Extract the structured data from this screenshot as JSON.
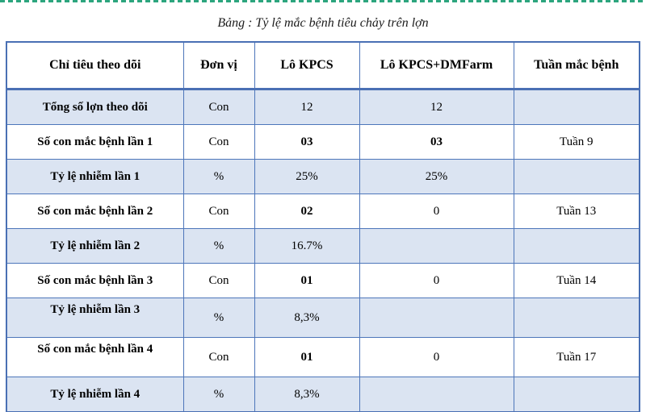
{
  "caption": "Bảng : Tỷ lệ mắc bệnh tiêu chảy trên lợn",
  "colors": {
    "top_dashed_line": "#2ca57e",
    "table_border": "#4a70b4",
    "shaded_row_fill": "#dbe4f2"
  },
  "table": {
    "columns": [
      "Chỉ tiêu theo dõi",
      "Đơn vị",
      "Lô KPCS",
      "Lô KPCS+DMFarm",
      "Tuần mắc bệnh"
    ],
    "rows": [
      {
        "label": "Tổng số lợn theo dõi",
        "unit": "Con",
        "kpcs": "12",
        "dmfarm": "12",
        "week": "",
        "shaded": true,
        "kpcs_bold": false,
        "dmfarm_bold": false,
        "label_top": false
      },
      {
        "label": "Số con mắc bệnh lần 1",
        "unit": "Con",
        "kpcs": "03",
        "dmfarm": "03",
        "week": "Tuần 9",
        "shaded": false,
        "kpcs_bold": true,
        "dmfarm_bold": true,
        "label_top": false
      },
      {
        "label": "Tỷ lệ nhiễm lần 1",
        "unit": "%",
        "kpcs": "25%",
        "dmfarm": "25%",
        "week": "",
        "shaded": true,
        "kpcs_bold": false,
        "dmfarm_bold": false,
        "label_top": false
      },
      {
        "label": "Số con mắc bệnh lần 2",
        "unit": "Con",
        "kpcs": "02",
        "dmfarm": "0",
        "week": "Tuần 13",
        "shaded": false,
        "kpcs_bold": true,
        "dmfarm_bold": false,
        "label_top": false
      },
      {
        "label": "Tỷ lệ nhiễm lần 2",
        "unit": "%",
        "kpcs": "16.7%",
        "dmfarm": "",
        "week": "",
        "shaded": true,
        "kpcs_bold": false,
        "dmfarm_bold": false,
        "label_top": false
      },
      {
        "label": "Số con mắc bệnh lần 3",
        "unit": "Con",
        "kpcs": "01",
        "dmfarm": "0",
        "week": "Tuần 14",
        "shaded": false,
        "kpcs_bold": true,
        "dmfarm_bold": false,
        "label_top": false
      },
      {
        "label": "Tỷ lệ nhiễm lần 3",
        "unit": "%",
        "kpcs": "8,3%",
        "dmfarm": "",
        "week": "",
        "shaded": true,
        "kpcs_bold": false,
        "dmfarm_bold": false,
        "label_top": true
      },
      {
        "label": "Số con mắc bệnh lần 4",
        "unit": "Con",
        "kpcs": "01",
        "dmfarm": "0",
        "week": "Tuần 17",
        "shaded": false,
        "kpcs_bold": true,
        "dmfarm_bold": false,
        "label_top": true
      },
      {
        "label": "Tỷ lệ nhiễm lần 4",
        "unit": "%",
        "kpcs": "8,3%",
        "dmfarm": "",
        "week": "",
        "shaded": true,
        "kpcs_bold": false,
        "dmfarm_bold": false,
        "label_top": false
      }
    ]
  }
}
